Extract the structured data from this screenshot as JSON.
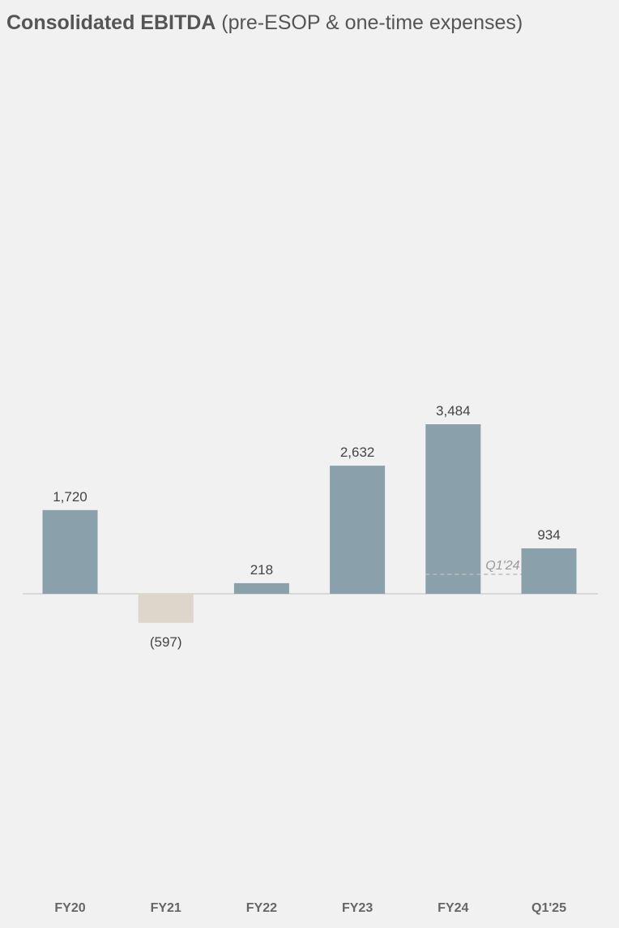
{
  "title": {
    "main": "Consolidated EBITDA",
    "subtitle": "(pre-ESOP & one-time expenses)"
  },
  "chart_data": {
    "type": "bar",
    "categories": [
      "FY20",
      "FY21",
      "FY22",
      "FY23",
      "FY24",
      "Q1'25"
    ],
    "values": [
      1720,
      -597,
      218,
      2632,
      3484,
      934
    ],
    "data_labels": [
      "1,720",
      "(597)",
      "218",
      "2,632",
      "3,484",
      "934"
    ],
    "reference_line": {
      "label": "Q1'24",
      "value": 400
    },
    "colors": {
      "positive": "#8aa0aa",
      "negative": "#ddd6ca",
      "baseline": "#d8d8d8",
      "reference": "#bcbcbc"
    },
    "grid": false,
    "legend": "none"
  }
}
